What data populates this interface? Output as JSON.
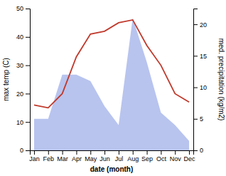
{
  "chart_data": {
    "type": "line",
    "xlabel": "date (month)",
    "ylabel": "max temp (C)",
    "y2label": "med. precipitation (kg/m2)",
    "categories": [
      "Jan",
      "Feb",
      "Mar",
      "Apr",
      "May",
      "Jun",
      "Jul",
      "Aug",
      "Sep",
      "Oct",
      "Nov",
      "Dec"
    ],
    "series": [
      {
        "type": "area",
        "axis": "y2",
        "color": "#b8c4ee",
        "values": [
          5,
          5,
          12,
          12,
          11,
          7,
          4,
          21,
          14,
          6,
          4,
          1.5
        ]
      },
      {
        "type": "line",
        "color": "#c0392b",
        "values": [
          16,
          15,
          20,
          33,
          41,
          42,
          45,
          46,
          37,
          30,
          20,
          17
        ]
      }
    ],
    "ylim": [
      0,
      50
    ],
    "yticks": [
      0,
      10,
      20,
      30,
      40,
      50
    ],
    "y2lim": [
      0,
      22.5
    ],
    "y2ticks": [
      0,
      5,
      10,
      15,
      20
    ],
    "grid": false
  }
}
